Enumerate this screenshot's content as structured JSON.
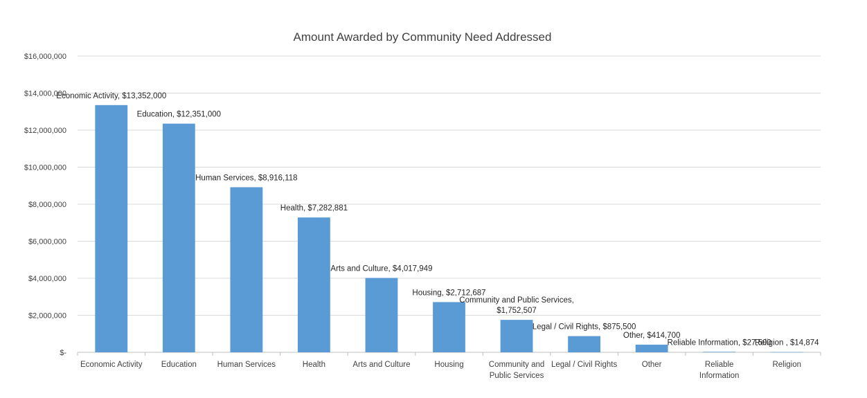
{
  "chart_data": {
    "type": "bar",
    "title": "Amount Awarded by Community Need Addressed",
    "xlabel": "",
    "ylabel": "",
    "ylim": [
      0,
      16000000
    ],
    "yticks": [
      0,
      2000000,
      4000000,
      6000000,
      8000000,
      10000000,
      12000000,
      14000000,
      16000000
    ],
    "ytick_labels": [
      "$-",
      "$2,000,000",
      "$4,000,000",
      "$6,000,000",
      "$8,000,000",
      "$10,000,000",
      "$12,000,000",
      "$14,000,000",
      "$16,000,000"
    ],
    "grid": true,
    "legend": "none",
    "bar_color": "#5b9bd5",
    "categories": [
      [
        "Economic Activity"
      ],
      [
        "Education"
      ],
      [
        "Human Services"
      ],
      [
        "Health"
      ],
      [
        "Arts and Culture"
      ],
      [
        "Housing"
      ],
      [
        "Community and",
        "Public Services"
      ],
      [
        "Legal / Civil Rights"
      ],
      [
        "Other"
      ],
      [
        "Reliable",
        "Information"
      ],
      [
        "Religion"
      ]
    ],
    "values": [
      13352000,
      12351000,
      8916118,
      7282881,
      4017949,
      2712687,
      1752507,
      875500,
      414700,
      27500,
      14874
    ],
    "data_labels": [
      [
        "Economic Activity,  $13,352,000"
      ],
      [
        "Education,  $12,351,000"
      ],
      [
        "Human Services,  $8,916,118"
      ],
      [
        "Health,  $7,282,881"
      ],
      [
        "Arts and Culture,  $4,017,949"
      ],
      [
        "Housing,  $2,712,687"
      ],
      [
        "Community and Public Services,",
        "$1,752,507"
      ],
      [
        "Legal / Civil Rights,  $875,500"
      ],
      [
        "Other,  $414,700"
      ],
      [
        "Reliable Information,  $27,500"
      ],
      [
        "Religion ,  $14,874"
      ]
    ]
  }
}
